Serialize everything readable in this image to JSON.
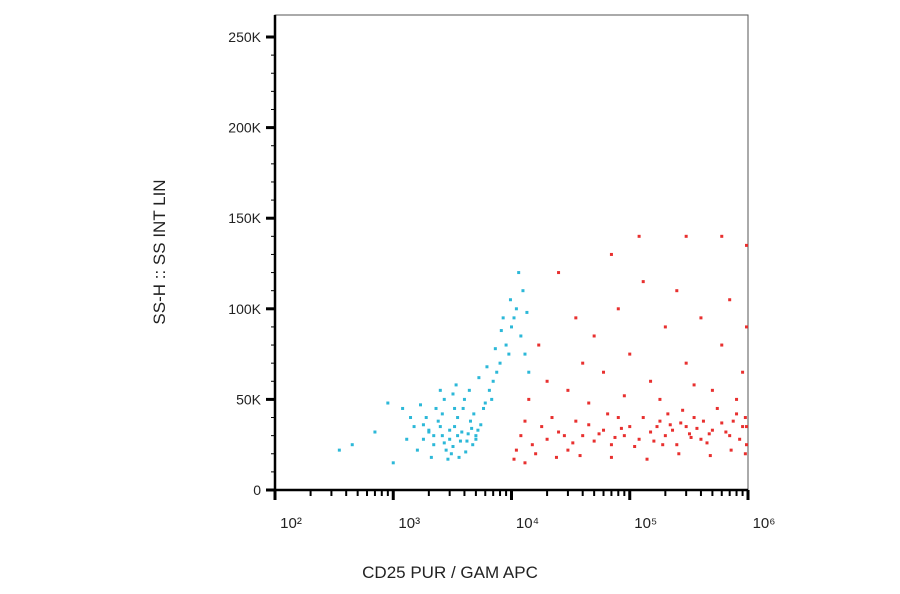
{
  "chart_data": {
    "type": "scatter",
    "x_label": "CD25 PUR / GAM APC",
    "y_label": "SS-H :: SS INT LIN",
    "xscale": "log",
    "xlim": [
      100,
      1000000
    ],
    "ylim": [
      0,
      262144
    ],
    "xticks": [
      {
        "value": 100,
        "label": "10²"
      },
      {
        "value": 1000,
        "label": "10³"
      },
      {
        "value": 10000,
        "label": "10⁴"
      },
      {
        "value": 100000,
        "label": "10⁵"
      },
      {
        "value": 1000000,
        "label": "10⁶"
      }
    ],
    "xminorticks": [
      200,
      300,
      400,
      500,
      600,
      700,
      800,
      900,
      2000,
      3000,
      4000,
      5000,
      6000,
      7000,
      8000,
      9000,
      20000,
      30000,
      40000,
      50000,
      60000,
      70000,
      80000,
      90000,
      200000,
      300000,
      400000,
      500000,
      600000,
      700000,
      800000,
      900000
    ],
    "yticks": [
      0,
      {
        "value": 50000,
        "label": "50K"
      },
      {
        "value": 100000,
        "label": "100K"
      },
      {
        "value": 150000,
        "label": "150K"
      },
      {
        "value": 200000,
        "label": "200K"
      },
      {
        "value": 250000,
        "label": "250K"
      }
    ],
    "yminorticks": [
      10000,
      20000,
      30000,
      40000,
      60000,
      70000,
      80000,
      90000,
      110000,
      120000,
      130000,
      140000,
      160000,
      170000,
      180000,
      190000,
      210000,
      220000,
      230000,
      240000
    ],
    "series": [
      {
        "color": "#2cb8d8",
        "x": [
          2200,
          2600,
          3000,
          3300,
          3800,
          4200,
          2800,
          3500,
          2000,
          4500,
          5000,
          1800,
          2400,
          3100,
          3900,
          4800,
          5500,
          6000,
          6500,
          7000,
          8000,
          9000,
          10000,
          11000,
          12000,
          9500,
          7500,
          8500,
          12500,
          11500,
          13000,
          6800,
          5800,
          1500,
          1300,
          1600,
          2100,
          2900,
          3600,
          4100,
          4700,
          5200,
          1900,
          2300,
          2700,
          3200,
          1200,
          900,
          700,
          450,
          350,
          1000,
          1400,
          1700,
          2500,
          3400,
          4000,
          4400,
          5300,
          6200,
          7300,
          8200,
          9800,
          10500,
          13500,
          14000,
          2000,
          2500,
          3000,
          3500,
          2700,
          3200,
          3700,
          4300,
          2200,
          1800,
          2600,
          3300,
          4600,
          5000
        ],
        "y": [
          25000,
          30000,
          28000,
          35000,
          32000,
          27000,
          22000,
          40000,
          33000,
          38000,
          30000,
          28000,
          38000,
          20000,
          45000,
          42000,
          36000,
          48000,
          55000,
          60000,
          70000,
          80000,
          90000,
          100000,
          85000,
          75000,
          65000,
          95000,
          110000,
          120000,
          75000,
          50000,
          45000,
          35000,
          28000,
          22000,
          18000,
          17000,
          18000,
          21000,
          25000,
          33000,
          40000,
          45000,
          50000,
          53000,
          45000,
          48000,
          32000,
          25000,
          22000,
          15000,
          40000,
          47000,
          55000,
          58000,
          50000,
          55000,
          62000,
          68000,
          78000,
          88000,
          105000,
          95000,
          98000,
          65000,
          32000,
          35000,
          33000,
          30000,
          26000,
          24000,
          27000,
          31000,
          30000,
          36000,
          42000,
          45000,
          34000,
          28000
        ]
      },
      {
        "color": "#e8302f",
        "x": [
          12000,
          15000,
          18000,
          20000,
          25000,
          30000,
          35000,
          40000,
          50000,
          60000,
          70000,
          80000,
          90000,
          100000,
          120000,
          150000,
          180000,
          200000,
          250000,
          300000,
          350000,
          400000,
          500000,
          600000,
          700000,
          800000,
          900000,
          11000,
          13000,
          16000,
          22000,
          28000,
          33000,
          45000,
          55000,
          65000,
          75000,
          85000,
          110000,
          130000,
          160000,
          220000,
          280000,
          320000,
          450000,
          550000,
          650000,
          750000,
          850000,
          950000,
          14000,
          20000,
          30000,
          40000,
          50000,
          60000,
          80000,
          100000,
          130000,
          150000,
          200000,
          250000,
          300000,
          400000,
          500000,
          600000,
          700000,
          900000,
          25000,
          35000,
          70000,
          120000,
          300000,
          600000,
          1000000,
          1000000,
          17000,
          45000,
          90000,
          180000,
          350000,
          800000,
          1000000,
          1000000,
          950000,
          10500,
          13000,
          24000,
          38000,
          70000,
          140000,
          260000,
          480000,
          720000,
          230000,
          270000,
          330000,
          370000,
          420000,
          470000,
          210000,
          190000,
          170000
        ],
        "y": [
          30000,
          25000,
          35000,
          28000,
          32000,
          22000,
          38000,
          30000,
          27000,
          33000,
          25000,
          40000,
          30000,
          35000,
          28000,
          32000,
          38000,
          30000,
          25000,
          35000,
          40000,
          28000,
          33000,
          37000,
          30000,
          42000,
          35000,
          22000,
          38000,
          20000,
          40000,
          30000,
          26000,
          36000,
          31000,
          42000,
          29000,
          34000,
          24000,
          40000,
          27000,
          36000,
          44000,
          31000,
          26000,
          45000,
          32000,
          38000,
          28000,
          40000,
          50000,
          60000,
          55000,
          70000,
          85000,
          65000,
          100000,
          75000,
          115000,
          60000,
          90000,
          110000,
          70000,
          95000,
          55000,
          80000,
          105000,
          65000,
          120000,
          95000,
          130000,
          140000,
          140000,
          140000,
          135000,
          90000,
          80000,
          48000,
          52000,
          50000,
          58000,
          50000,
          35000,
          25000,
          20000,
          17000,
          15000,
          18000,
          19000,
          18000,
          17000,
          20000,
          19000,
          22000,
          33000,
          37000,
          29000,
          34000,
          38000,
          31000,
          42000,
          25000,
          35000
        ]
      }
    ]
  }
}
